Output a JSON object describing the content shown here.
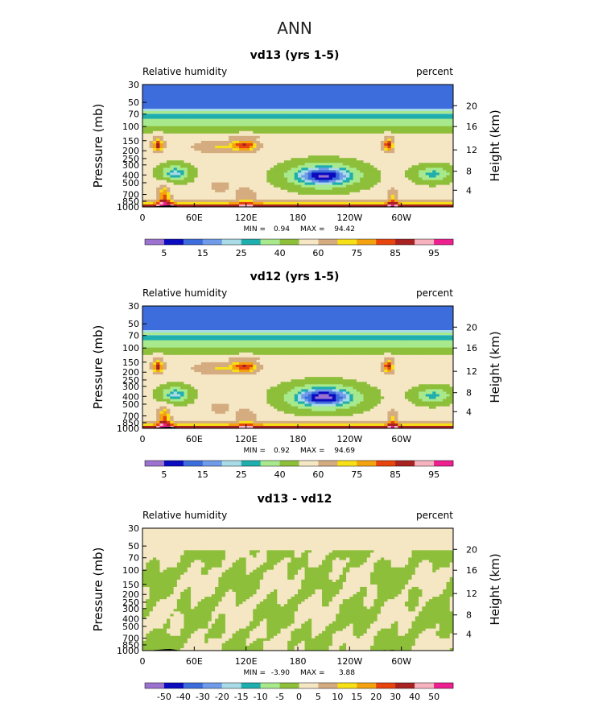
{
  "page_title": "ANN",
  "colors": {
    "rh_levels": [
      "#9b72cf",
      "#0b0bbf",
      "#3d6cdc",
      "#6f9be8",
      "#a9dbe6",
      "#1faeae",
      "#a7e98c",
      "#8dbf3a",
      "#f5e6c4",
      "#d4ac80",
      "#f7e016",
      "#f4a20f",
      "#e8440d",
      "#a82222",
      "#f7b2c0",
      "#ee2090"
    ],
    "diff_levels": [
      "#9b72cf",
      "#0b0bbf",
      "#3d6cdc",
      "#6f9be8",
      "#a9dbe6",
      "#1faeae",
      "#a7e98c",
      "#8dbf3a",
      "#f5e6c4",
      "#d4ac80",
      "#f7e016",
      "#f4a20f",
      "#e8440d",
      "#a82222",
      "#f7b2c0",
      "#ee2090"
    ],
    "topography": "#000000"
  },
  "chart_data": [
    {
      "type": "heatmap",
      "title": "vd13 (yrs 1-5)",
      "left_label": "Relative humidity",
      "right_label": "percent",
      "ylabel": "Pressure (mb)",
      "y2label": "Height (km)",
      "x_ticks": [
        "0",
        "60E",
        "120E",
        "180",
        "120W",
        "60W"
      ],
      "x_tick_values": [
        0,
        60,
        120,
        180,
        240,
        300
      ],
      "xlim": [
        0,
        360
      ],
      "y_ticks": [
        "30",
        "50",
        "70",
        "100",
        "150",
        "200",
        "250",
        "300",
        "400",
        "500",
        "700",
        "850",
        "1000"
      ],
      "y_tick_values": [
        30,
        50,
        70,
        100,
        150,
        200,
        250,
        300,
        400,
        500,
        700,
        850,
        1000
      ],
      "ylim": [
        30,
        1000
      ],
      "y2_ticks": [
        "20",
        "16",
        "12",
        "8",
        "4"
      ],
      "y2_tick_values": [
        20,
        16,
        12,
        8,
        4
      ],
      "min_label": "MIN =",
      "min_value": "0.94",
      "max_label": "MAX =",
      "max_value": "94.42",
      "legend_labels": [
        "5",
        "15",
        "25",
        "40",
        "60",
        "75",
        "85",
        "95"
      ],
      "contour_levels": [
        5,
        10,
        15,
        20,
        25,
        30,
        40,
        50,
        60,
        70,
        75,
        80,
        85,
        90,
        95
      ],
      "features": {
        "subtropical_dry_cores": [
          {
            "lon": 210,
            "p": 400,
            "value": 8
          },
          {
            "lon": 35,
            "p": 380,
            "value": 25
          },
          {
            "lon": 335,
            "p": 390,
            "value": 30
          }
        ],
        "upper_moist_maxima": [
          {
            "lon": 18,
            "p": 170,
            "value": 90
          },
          {
            "lon": 120,
            "p": 170,
            "value": 85
          },
          {
            "lon": 285,
            "p": 170,
            "value": 88
          }
        ],
        "boundary_layer_max": {
          "p": 950,
          "value": 92
        }
      }
    },
    {
      "type": "heatmap",
      "title": "vd12 (yrs 1-5)",
      "left_label": "Relative humidity",
      "right_label": "percent",
      "ylabel": "Pressure (mb)",
      "y2label": "Height (km)",
      "x_ticks": [
        "0",
        "60E",
        "120E",
        "180",
        "120W",
        "60W"
      ],
      "x_tick_values": [
        0,
        60,
        120,
        180,
        240,
        300
      ],
      "xlim": [
        0,
        360
      ],
      "y_ticks": [
        "30",
        "50",
        "70",
        "100",
        "150",
        "200",
        "250",
        "300",
        "400",
        "500",
        "700",
        "850",
        "1000"
      ],
      "y_tick_values": [
        30,
        50,
        70,
        100,
        150,
        200,
        250,
        300,
        400,
        500,
        700,
        850,
        1000
      ],
      "ylim": [
        30,
        1000
      ],
      "y2_ticks": [
        "20",
        "16",
        "12",
        "8",
        "4"
      ],
      "y2_tick_values": [
        20,
        16,
        12,
        8,
        4
      ],
      "min_label": "MIN =",
      "min_value": "0.92",
      "max_label": "MAX =",
      "max_value": "94.69",
      "legend_labels": [
        "5",
        "15",
        "25",
        "40",
        "60",
        "75",
        "85",
        "95"
      ],
      "contour_levels": [
        5,
        10,
        15,
        20,
        25,
        30,
        40,
        50,
        60,
        70,
        75,
        80,
        85,
        90,
        95
      ],
      "features": {
        "subtropical_dry_cores": [
          {
            "lon": 210,
            "p": 410,
            "value": 8
          },
          {
            "lon": 35,
            "p": 390,
            "value": 25
          },
          {
            "lon": 335,
            "p": 400,
            "value": 30
          }
        ],
        "upper_moist_maxima": [
          {
            "lon": 18,
            "p": 170,
            "value": 90
          },
          {
            "lon": 120,
            "p": 170,
            "value": 85
          },
          {
            "lon": 285,
            "p": 170,
            "value": 88
          }
        ],
        "boundary_layer_max": {
          "p": 950,
          "value": 92
        }
      }
    },
    {
      "type": "heatmap",
      "title": "vd13 - vd12",
      "left_label": "Relative humidity",
      "right_label": "percent",
      "ylabel": "Pressure (mb)",
      "y2label": "Height (km)",
      "x_ticks": [
        "0",
        "60E",
        "120E",
        "180",
        "120W",
        "60W"
      ],
      "x_tick_values": [
        0,
        60,
        120,
        180,
        240,
        300
      ],
      "xlim": [
        0,
        360
      ],
      "y_ticks": [
        "30",
        "50",
        "70",
        "100",
        "150",
        "200",
        "250",
        "300",
        "400",
        "500",
        "700",
        "850",
        "1000"
      ],
      "y_tick_values": [
        30,
        50,
        70,
        100,
        150,
        200,
        250,
        300,
        400,
        500,
        700,
        850,
        1000
      ],
      "ylim": [
        30,
        1000
      ],
      "y2_ticks": [
        "20",
        "16",
        "12",
        "8",
        "4"
      ],
      "y2_tick_values": [
        20,
        16,
        12,
        8,
        4
      ],
      "min_label": "MIN =",
      "min_value": "-3.90",
      "max_label": "MAX =",
      "max_value": "3.88",
      "legend_labels": [
        "-50",
        "-40",
        "-30",
        "-20",
        "-15",
        "-10",
        "-5",
        "0",
        "5",
        "10",
        "15",
        "20",
        "30",
        "40",
        "50"
      ],
      "contour_levels": [
        -50,
        -40,
        -30,
        -20,
        -15,
        -10,
        -5,
        0,
        5,
        10,
        15,
        20,
        30,
        40,
        50
      ],
      "features": {
        "dominant_ranges": [
          "-5 to 0",
          "0 to 5"
        ]
      }
    }
  ]
}
